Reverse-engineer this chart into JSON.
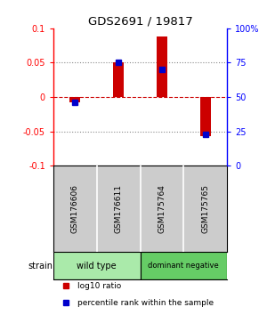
{
  "title": "GDS2691 / 19817",
  "samples": [
    "GSM176606",
    "GSM176611",
    "GSM175764",
    "GSM175765"
  ],
  "log10_ratios": [
    -0.008,
    0.051,
    0.088,
    -0.057
  ],
  "percentile_ranks": [
    46,
    75,
    70,
    23
  ],
  "ylim_left": [
    -0.1,
    0.1
  ],
  "ylim_right": [
    0,
    100
  ],
  "yticks_left": [
    -0.1,
    -0.05,
    0,
    0.05,
    0.1
  ],
  "ytick_labels_left": [
    "-0.1",
    "-0.05",
    "0",
    "0.05",
    "0.1"
  ],
  "yticks_right": [
    0,
    25,
    50,
    75,
    100
  ],
  "ytick_labels_right": [
    "0",
    "25",
    "50",
    "75",
    "100%"
  ],
  "groups": [
    {
      "label": "wild type",
      "indices": [
        0,
        1
      ],
      "color": "#aaeaaa"
    },
    {
      "label": "dominant negative",
      "indices": [
        2,
        3
      ],
      "color": "#66cc66"
    }
  ],
  "bar_color": "#cc0000",
  "dot_color": "#0000cc",
  "hline_color": "#cc0000",
  "dotted_color": "#888888",
  "bar_width": 0.25,
  "dot_size": 4,
  "background_color": "#ffffff",
  "plot_bg_color": "#ffffff",
  "sample_bg_color": "#cccccc",
  "strain_label": "strain",
  "legend_items": [
    {
      "color": "#cc0000",
      "label": "log10 ratio"
    },
    {
      "color": "#0000cc",
      "label": "percentile rank within the sample"
    }
  ]
}
